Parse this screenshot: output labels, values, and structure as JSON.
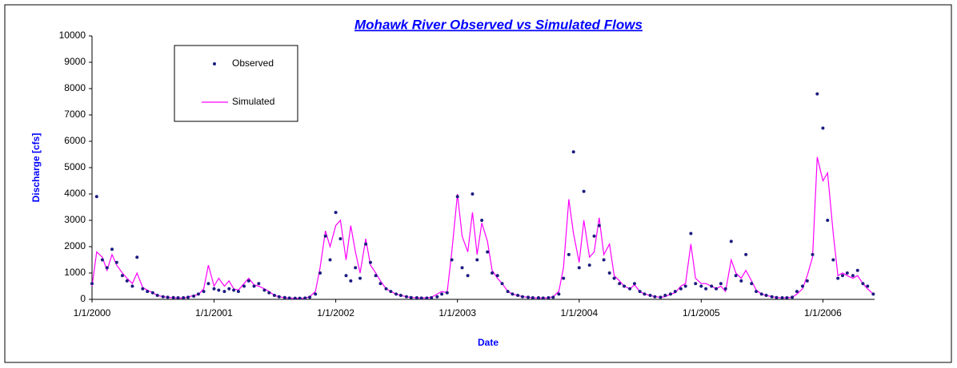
{
  "chart_data": {
    "type": "line",
    "title": "Mohawk River Observed vs Simulated Flows",
    "x_label": "Date",
    "y_label": "Discharge [cfs]",
    "xlim": [
      "2000-01-01",
      "2006-06-05"
    ],
    "xticks": [
      {
        "value": "2000-01-01",
        "label": "1/1/2000"
      },
      {
        "value": "2001-01-01",
        "label": "1/1/2001"
      },
      {
        "value": "2002-01-01",
        "label": "1/1/2002"
      },
      {
        "value": "2003-01-01",
        "label": "1/1/2003"
      },
      {
        "value": "2004-01-01",
        "label": "1/1/2004"
      },
      {
        "value": "2005-01-01",
        "label": "1/1/2005"
      },
      {
        "value": "2006-01-01",
        "label": "1/1/2006"
      }
    ],
    "ylim": [
      0,
      10000
    ],
    "yticks": [
      0,
      1000,
      2000,
      3000,
      4000,
      5000,
      6000,
      7000,
      8000,
      9000,
      10000
    ],
    "grid": false,
    "legend": "upper-left",
    "x": [
      "2000-01-01",
      "2000-01-15",
      "2000-02-01",
      "2000-02-15",
      "2000-03-01",
      "2000-03-15",
      "2000-04-01",
      "2000-04-15",
      "2000-05-01",
      "2000-05-15",
      "2000-06-01",
      "2000-06-15",
      "2000-07-01",
      "2000-07-15",
      "2000-08-01",
      "2000-08-15",
      "2000-09-01",
      "2000-09-15",
      "2000-10-01",
      "2000-10-15",
      "2000-11-01",
      "2000-11-15",
      "2000-12-01",
      "2000-12-15",
      "2001-01-01",
      "2001-01-15",
      "2001-02-01",
      "2001-02-15",
      "2001-03-01",
      "2001-03-15",
      "2001-04-01",
      "2001-04-15",
      "2001-05-01",
      "2001-05-15",
      "2001-06-01",
      "2001-06-15",
      "2001-07-01",
      "2001-07-15",
      "2001-08-01",
      "2001-08-15",
      "2001-09-01",
      "2001-09-15",
      "2001-10-01",
      "2001-10-15",
      "2001-11-01",
      "2001-11-15",
      "2001-12-01",
      "2001-12-15",
      "2002-01-01",
      "2002-01-15",
      "2002-02-01",
      "2002-02-15",
      "2002-03-01",
      "2002-03-15",
      "2002-04-01",
      "2002-04-15",
      "2002-05-01",
      "2002-05-15",
      "2002-06-01",
      "2002-06-15",
      "2002-07-01",
      "2002-07-15",
      "2002-08-01",
      "2002-08-15",
      "2002-09-01",
      "2002-09-15",
      "2002-10-01",
      "2002-10-15",
      "2002-11-01",
      "2002-11-15",
      "2002-12-01",
      "2002-12-15",
      "2003-01-01",
      "2003-01-15",
      "2003-02-01",
      "2003-02-15",
      "2003-03-01",
      "2003-03-15",
      "2003-04-01",
      "2003-04-15",
      "2003-05-01",
      "2003-05-15",
      "2003-06-01",
      "2003-06-15",
      "2003-07-01",
      "2003-07-15",
      "2003-08-01",
      "2003-08-15",
      "2003-09-01",
      "2003-09-15",
      "2003-10-01",
      "2003-10-15",
      "2003-11-01",
      "2003-11-15",
      "2003-12-01",
      "2003-12-15",
      "2004-01-01",
      "2004-01-15",
      "2004-02-01",
      "2004-02-15",
      "2004-03-01",
      "2004-03-15",
      "2004-04-01",
      "2004-04-15",
      "2004-05-01",
      "2004-05-15",
      "2004-06-01",
      "2004-06-15",
      "2004-07-01",
      "2004-07-15",
      "2004-08-01",
      "2004-08-15",
      "2004-09-01",
      "2004-09-15",
      "2004-10-01",
      "2004-10-15",
      "2004-11-01",
      "2004-11-15",
      "2004-12-01",
      "2004-12-15",
      "2005-01-01",
      "2005-01-15",
      "2005-02-01",
      "2005-02-15",
      "2005-03-01",
      "2005-03-15",
      "2005-04-01",
      "2005-04-15",
      "2005-05-01",
      "2005-05-15",
      "2005-06-01",
      "2005-06-15",
      "2005-07-01",
      "2005-07-15",
      "2005-08-01",
      "2005-08-15",
      "2005-09-01",
      "2005-09-15",
      "2005-10-01",
      "2005-10-15",
      "2005-11-01",
      "2005-11-15",
      "2005-12-01",
      "2005-12-15",
      "2006-01-01",
      "2006-01-15",
      "2006-02-01",
      "2006-02-15",
      "2006-03-01",
      "2006-03-15",
      "2006-04-01",
      "2006-04-15",
      "2006-05-01",
      "2006-05-15",
      "2006-06-01"
    ],
    "series": [
      {
        "name": "Observed",
        "color": "#1c1c80",
        "marker": "dot",
        "values": [
          600,
          3900,
          1500,
          1200,
          1900,
          1400,
          900,
          700,
          500,
          1600,
          400,
          300,
          250,
          150,
          100,
          80,
          70,
          60,
          60,
          80,
          120,
          200,
          300,
          600,
          400,
          350,
          300,
          400,
          350,
          300,
          500,
          700,
          500,
          600,
          350,
          250,
          150,
          100,
          70,
          50,
          40,
          40,
          50,
          80,
          200,
          1000,
          2400,
          1500,
          3300,
          2300,
          900,
          700,
          1200,
          800,
          2100,
          1400,
          900,
          600,
          400,
          300,
          200,
          150,
          100,
          70,
          60,
          50,
          50,
          60,
          100,
          200,
          250,
          1500,
          3900,
          1200,
          900,
          4000,
          1500,
          3000,
          1800,
          1000,
          900,
          600,
          300,
          200,
          150,
          100,
          80,
          60,
          60,
          50,
          60,
          80,
          200,
          800,
          1700,
          5600,
          1200,
          4100,
          1300,
          2400,
          2800,
          1500,
          1000,
          800,
          600,
          500,
          400,
          600,
          300,
          200,
          150,
          100,
          80,
          150,
          200,
          300,
          400,
          500,
          2500,
          600,
          500,
          400,
          500,
          400,
          600,
          400,
          2200,
          900,
          700,
          1700,
          600,
          300,
          200,
          150,
          100,
          70,
          60,
          60,
          80,
          300,
          500,
          700,
          1700,
          7800,
          6500,
          3000,
          1500,
          800,
          900,
          1000,
          900,
          1100,
          600,
          500,
          200
        ]
      },
      {
        "name": "Simulated",
        "color": "#ff00ff",
        "marker": "line",
        "values": [
          500,
          1800,
          1600,
          1100,
          1700,
          1300,
          1000,
          800,
          600,
          1000,
          450,
          350,
          250,
          150,
          100,
          80,
          60,
          50,
          50,
          90,
          150,
          180,
          400,
          1300,
          500,
          800,
          500,
          700,
          400,
          350,
          600,
          800,
          550,
          500,
          400,
          300,
          150,
          100,
          60,
          50,
          40,
          40,
          50,
          100,
          300,
          1200,
          2600,
          2000,
          2800,
          3000,
          1500,
          2800,
          1800,
          1000,
          2300,
          1300,
          1000,
          700,
          400,
          300,
          200,
          150,
          100,
          70,
          60,
          50,
          60,
          80,
          200,
          300,
          250,
          1800,
          4000,
          2400,
          1800,
          3300,
          1700,
          2900,
          2200,
          1100,
          800,
          600,
          300,
          200,
          150,
          100,
          80,
          60,
          50,
          50,
          60,
          100,
          300,
          1200,
          3800,
          2500,
          1400,
          3000,
          1600,
          1800,
          3100,
          1700,
          2100,
          900,
          700,
          500,
          400,
          550,
          300,
          200,
          150,
          100,
          80,
          100,
          200,
          250,
          500,
          600,
          2100,
          800,
          600,
          600,
          500,
          400,
          500,
          300,
          1500,
          1000,
          800,
          1100,
          700,
          350,
          200,
          150,
          100,
          70,
          60,
          60,
          80,
          200,
          400,
          900,
          1600,
          5400,
          4500,
          4800,
          2500,
          900,
          1000,
          900,
          800,
          900,
          600,
          400,
          200
        ]
      }
    ]
  }
}
